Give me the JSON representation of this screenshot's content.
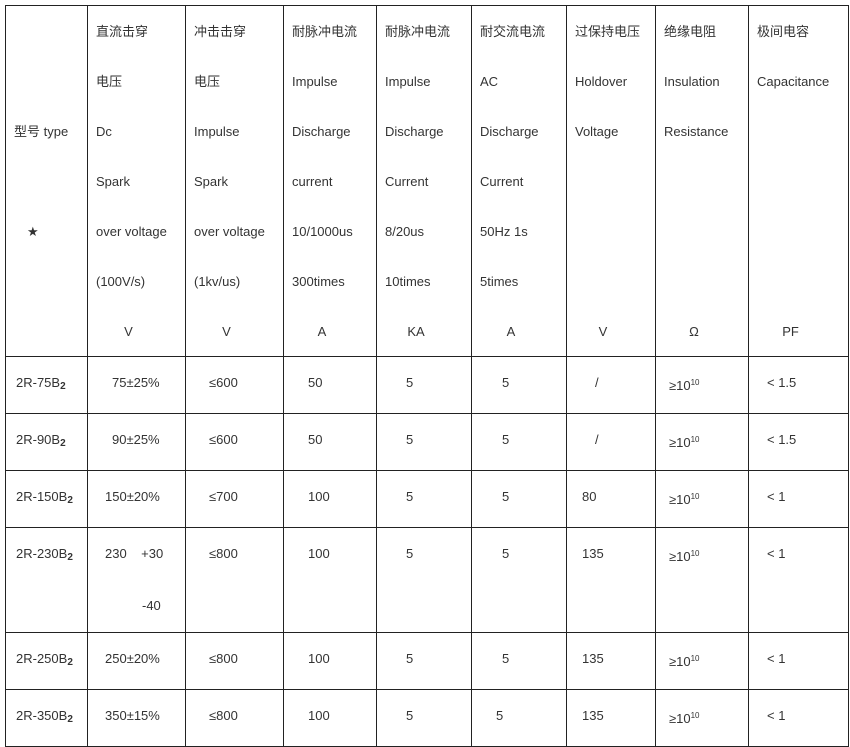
{
  "header": {
    "type_label": "型号 type",
    "star": "★",
    "columns": [
      {
        "lines": [
          "直流击穿",
          "电压",
          "Dc",
          "Spark",
          "over voltage",
          "(100V/s)"
        ],
        "unit": "V"
      },
      {
        "lines": [
          "冲击击穿",
          "电压",
          "Impulse",
          "Spark",
          "over voltage",
          "(1kv/us)"
        ],
        "unit": "V"
      },
      {
        "lines": [
          "耐脉冲电流",
          "Impulse",
          "Discharge",
          "current",
          "10/1000us",
          "300times"
        ],
        "unit": "A"
      },
      {
        "lines": [
          "耐脉冲电流",
          " Impulse",
          "Discharge",
          "Current",
          "8/20us",
          "10times"
        ],
        "unit": "KA"
      },
      {
        "lines": [
          "耐交流电流",
          "AC",
          "Discharge",
          "Current",
          "50Hz 1s",
          "5times"
        ],
        "unit": "A"
      },
      {
        "lines": [
          "过保持电压",
          "Holdover",
          "Voltage",
          "",
          "",
          ""
        ],
        "unit": "V"
      },
      {
        "lines": [
          "绝缘电阻",
          "Insulation",
          "Resistance",
          "",
          "",
          ""
        ],
        "unit": "Ω"
      },
      {
        "lines": [
          "极间电容",
          "Capacitance",
          "",
          "",
          "",
          ""
        ],
        "unit": "PF"
      }
    ]
  },
  "rows": [
    {
      "model": "2R-75B",
      "sub": "2",
      "dc": "75±25%",
      "impulse": "≤600",
      "a": "50",
      "ka": "5",
      "ac": "5",
      "hold": "/",
      "ins": "≥10",
      "ins_exp": "10",
      "cap": "< 1.5"
    },
    {
      "model": "2R-90B",
      "sub": "2",
      "dc": "90±25%",
      "impulse": "≤600",
      "a": "50",
      "ka": "5",
      "ac": "5",
      "hold": "/",
      "ins": "≥10",
      "ins_exp": "10",
      "cap": "< 1.5"
    },
    {
      "model": "2R-150B",
      "sub": "2",
      "dc": "150±20%",
      "impulse": "≤700",
      "a": "100",
      "ka": "5",
      "ac": "5",
      "hold": "80",
      "ins": "≥10",
      "ins_exp": "10",
      "cap": "< 1"
    },
    {
      "model": "2R-230B",
      "sub": "2",
      "dc": "230    +30",
      "dc2": "-40",
      "impulse": "≤800",
      "a": "100",
      "ka": "5",
      "ac": "5",
      "hold": "135",
      "ins": "≥10",
      "ins_exp": "10",
      "cap": "< 1"
    },
    {
      "model": "2R-250B",
      "sub": "2",
      "dc": "250±20%",
      "impulse": "≤800",
      "a": "100",
      "ka": "5",
      "ac": "5",
      "hold": "135",
      "ins": "≥10",
      "ins_exp": "10",
      "cap": "< 1"
    },
    {
      "model": "2R-350B",
      "sub": "2",
      "dc": "350±15%",
      "impulse": "≤800",
      "a": "100",
      "ka": "5",
      "ac": "5",
      "hold": "135",
      "ins": "≥10",
      "ins_exp": "10",
      "cap": "< 1"
    }
  ]
}
